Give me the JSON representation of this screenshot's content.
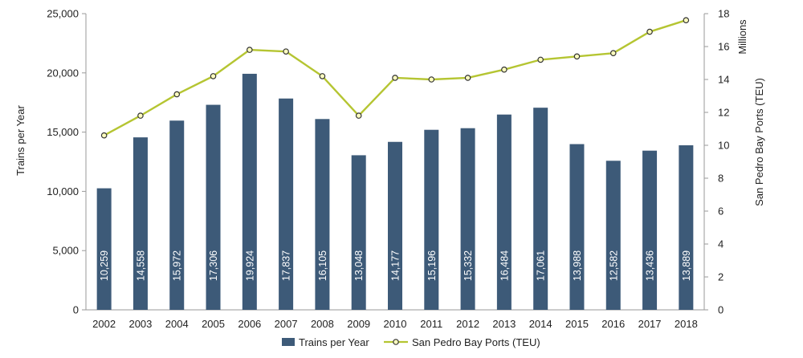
{
  "chart_data": {
    "type": "bar",
    "categories": [
      "2002",
      "2003",
      "2004",
      "2005",
      "2006",
      "2007",
      "2008",
      "2009",
      "2010",
      "2011",
      "2012",
      "2013",
      "2014",
      "2015",
      "2016",
      "2017",
      "2018"
    ],
    "series": [
      {
        "name": "Trains per Year",
        "axis": "left",
        "kind": "bar",
        "color": "#3d5a78",
        "values": [
          10259,
          14558,
          15972,
          17306,
          19924,
          17837,
          16105,
          13048,
          14177,
          15196,
          15332,
          16484,
          17061,
          13988,
          12582,
          13436,
          13889
        ],
        "labels": [
          "10,259",
          "14,558",
          "15,972",
          "17,306",
          "19,924",
          "17,837",
          "16,105",
          "13,048",
          "14,177",
          "15,196",
          "15,332",
          "16,484",
          "17,061",
          "13,988",
          "12,582",
          "13,436",
          "13,889"
        ]
      },
      {
        "name": "San Pedro Bay Ports (TEU)",
        "axis": "right",
        "kind": "line",
        "color": "#b5c532",
        "marker_fill": "#ffffc0",
        "values": [
          10.6,
          11.8,
          13.1,
          14.2,
          15.8,
          15.7,
          14.2,
          11.8,
          14.1,
          14.0,
          14.1,
          14.6,
          15.2,
          15.4,
          15.6,
          16.9,
          17.6
        ]
      }
    ],
    "ylabel_left": "Trains per Year",
    "ylim_left": [
      0,
      25000
    ],
    "yticks_left": [
      "0",
      "5,000",
      "10,000",
      "15,000",
      "20,000",
      "25,000"
    ],
    "ylabel_right": "San Pedro Bay Ports (TEU)",
    "yunit_right": "Millions",
    "ylim_right": [
      0,
      18
    ],
    "yticks_right": [
      "0",
      "2",
      "4",
      "6",
      "8",
      "10",
      "12",
      "14",
      "16",
      "18"
    ],
    "grid": false,
    "legend_position": "bottom"
  }
}
